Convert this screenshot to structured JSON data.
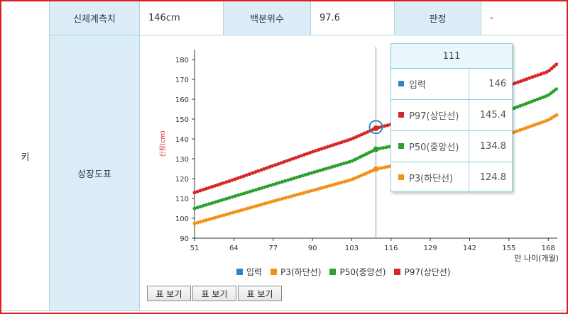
{
  "row_label": "키",
  "measure": {
    "label": "신체계측치",
    "value": "146cm",
    "percentile_label": "백분위수",
    "percentile_value": "97.6",
    "judgment_label": "판정",
    "judgment_value": "-"
  },
  "chart_row_label": "성장도표",
  "colors": {
    "input": "#2e86c1",
    "p3": "#f39019",
    "p50": "#2ca02c",
    "p97": "#d62728",
    "header_bg": "#dbeef8",
    "border": "#b7cfe0"
  },
  "chart_data": {
    "type": "line",
    "xlabel": "만 나이(개월)",
    "ylabel": "신장(cm)",
    "x_ticks": [
      51,
      64,
      77,
      90,
      103,
      116,
      129,
      142,
      155,
      168
    ],
    "y_ticks": [
      90,
      100,
      110,
      120,
      130,
      140,
      150,
      160,
      170,
      180
    ],
    "xlim": [
      51,
      171
    ],
    "ylim": [
      90,
      185
    ],
    "series": [
      {
        "name": "입력",
        "key": "input",
        "points": [
          [
            111,
            146
          ]
        ]
      },
      {
        "name": "P3(하단선)",
        "key": "p3",
        "x": [
          51,
          64,
          77,
          90,
          103,
          111,
          116,
          129,
          142,
          155,
          168,
          171
        ],
        "values": [
          97.4,
          103,
          108.6,
          114,
          119.5,
          124.8,
          126.3,
          131.3,
          136.7,
          142.5,
          149.5,
          152.3
        ]
      },
      {
        "name": "P50(중앙선)",
        "key": "p50",
        "x": [
          51,
          64,
          77,
          90,
          103,
          111,
          116,
          129,
          142,
          155,
          168,
          171
        ],
        "values": [
          105,
          111,
          117,
          123,
          128.8,
          134.8,
          136.3,
          141.8,
          147.8,
          154.5,
          162,
          165.5
        ]
      },
      {
        "name": "P97(상단선)",
        "key": "p97",
        "x": [
          51,
          64,
          77,
          90,
          103,
          111,
          116,
          129,
          142,
          155,
          168,
          171
        ],
        "values": [
          113,
          119.5,
          126.5,
          133.5,
          140,
          145.4,
          147.3,
          153.5,
          160,
          167,
          174,
          178
        ]
      }
    ],
    "legend": [
      "입력",
      "P3(하단선)",
      "P50(중앙선)",
      "P97(상단선)"
    ],
    "crosshair_x": 111
  },
  "tooltip": {
    "title": "111",
    "rows": [
      {
        "name": "입력",
        "value": "146",
        "color": "#2e86c1"
      },
      {
        "name": "P97(상단선)",
        "value": "145.4",
        "color": "#d62728"
      },
      {
        "name": "P50(중앙선)",
        "value": "134.8",
        "color": "#2ca02c"
      },
      {
        "name": "P3(하단선)",
        "value": "124.8",
        "color": "#f39019"
      }
    ]
  },
  "buttons": [
    "표 보기",
    "표 보기",
    "표 보기"
  ]
}
